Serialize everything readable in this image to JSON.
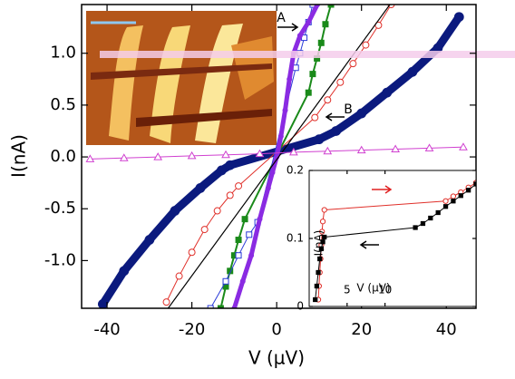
{
  "chart_data": [
    {
      "type": "line",
      "xlabel": "V (µV)",
      "ylabel": "I(nA)",
      "annotations": [
        "A",
        "B"
      ],
      "xlim": [
        -46,
        47
      ],
      "ylim": [
        -1.46,
        1.47
      ],
      "xticks": [
        -40,
        -20,
        0,
        20,
        40
      ],
      "yticks": [
        {
          "value": -1.0,
          "label": "-1.0"
        },
        -0.5,
        {
          "value": 0,
          "label": "0.0"
        },
        0.5,
        {
          "value": 1.0,
          "label": "1.0"
        }
      ],
      "series": [
        {
          "color": "#0b1a7e",
          "marker": "dot",
          "linewidth": 9,
          "x": [
            -41,
            -36,
            -30,
            -24,
            -18,
            -13,
            -11,
            10,
            14,
            20,
            26,
            32,
            38,
            43
          ],
          "values": [
            -1.42,
            -1.1,
            -0.8,
            -0.52,
            -0.3,
            -0.13,
            -0.08,
            0.17,
            0.25,
            0.42,
            0.62,
            0.82,
            1.05,
            1.35
          ]
        },
        {
          "color": "#e0302a",
          "marker": "circle",
          "linewidth": 1,
          "x": [
            -26,
            -23,
            -20,
            -17,
            -14,
            -11,
            -9,
            9,
            12,
            15,
            18,
            21,
            24,
            27
          ],
          "values": [
            -1.4,
            -1.15,
            -0.92,
            -0.7,
            -0.52,
            -0.37,
            -0.28,
            0.38,
            0.55,
            0.72,
            0.9,
            1.08,
            1.27,
            1.47
          ]
        },
        {
          "color": "#1a8a1a",
          "marker": "square",
          "linewidth": 2,
          "x": [
            -13.2,
            -12,
            -11,
            -10,
            -9,
            -7.5,
            7.5,
            8.5,
            9.5,
            10.5,
            11.5,
            12.8
          ],
          "values": [
            -1.46,
            -1.25,
            -1.1,
            -0.95,
            -0.8,
            -0.6,
            0.62,
            0.8,
            0.95,
            1.1,
            1.28,
            1.47
          ]
        },
        {
          "color": "#2a3ad8",
          "marker": "square-open",
          "linewidth": 1,
          "x": [
            -15.6,
            -12,
            -9,
            -6.5,
            -4.5,
            4.5,
            5.5,
            6.5,
            7.5,
            8.5
          ],
          "values": [
            -1.46,
            -1.2,
            -0.95,
            -0.75,
            -0.63,
            0.86,
            1.0,
            1.15,
            1.3,
            1.47
          ]
        },
        {
          "color": "#8a2be2",
          "marker": "dot",
          "linewidth": 5,
          "x": [
            -10,
            -8,
            -6,
            -4,
            -2,
            -1,
            0,
            1,
            2,
            3,
            4,
            5.5,
            7.5,
            9.6
          ],
          "values": [
            -1.46,
            -1.2,
            -0.95,
            -0.6,
            -0.3,
            -0.15,
            0,
            0.2,
            0.45,
            0.75,
            1.0,
            1.17,
            1.3,
            1.47
          ]
        },
        {
          "color": "#000000",
          "marker": "none",
          "linewidth": 1.2,
          "x": [
            -25.6,
            26.7
          ],
          "values": [
            -1.46,
            1.47
          ]
        },
        {
          "color": "#d040d0",
          "marker": "triangle",
          "linewidth": 1,
          "x": [
            -44,
            -36,
            -28,
            -20,
            -12,
            -4,
            4,
            12,
            20,
            28,
            36,
            44
          ],
          "values": [
            -0.02,
            -0.01,
            0,
            0.01,
            0.02,
            0.03,
            0.045,
            0.055,
            0.065,
            0.075,
            0.085,
            0.095
          ]
        }
      ]
    },
    {
      "type": "line",
      "xlabel": "V (µV)",
      "ylabel": "I(nA)",
      "xlim": [
        0,
        22
      ],
      "ylim": [
        0,
        0.2
      ],
      "xticks": [
        5,
        10
      ],
      "yticks": [
        0,
        0.1,
        0.2
      ],
      "series": [
        {
          "color": "#e0302a",
          "marker": "circle",
          "linewidth": 1,
          "x": [
            1.2,
            1.3,
            1.4,
            1.5,
            1.6,
            1.7,
            1.8,
            2.0,
            18,
            19,
            20,
            21,
            22
          ],
          "values": [
            0.01,
            0.03,
            0.05,
            0.07,
            0.09,
            0.11,
            0.125,
            0.142,
            0.155,
            0.162,
            0.168,
            0.175,
            0.182
          ]
        },
        {
          "color": "#000000",
          "marker": "square",
          "linewidth": 1,
          "x": [
            0.8,
            1.0,
            1.2,
            1.4,
            1.6,
            1.8,
            2.0,
            14,
            15,
            16,
            17,
            18,
            19,
            20,
            21,
            22
          ],
          "values": [
            0.01,
            0.03,
            0.05,
            0.07,
            0.085,
            0.095,
            0.102,
            0.116,
            0.122,
            0.13,
            0.138,
            0.147,
            0.155,
            0.163,
            0.171,
            0.18
          ]
        }
      ]
    }
  ]
}
